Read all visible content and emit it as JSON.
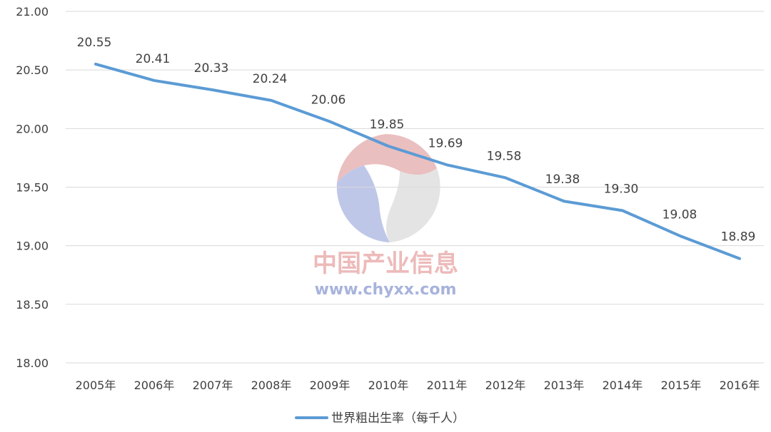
{
  "chart_data": {
    "type": "line",
    "title": "",
    "xlabel": "",
    "ylabel": "",
    "categories": [
      "2005年",
      "2006年",
      "2007年",
      "2008年",
      "2009年",
      "2010年",
      "2011年",
      "2012年",
      "2013年",
      "2014年",
      "2015年",
      "2016年"
    ],
    "series": [
      {
        "name": "世界粗出生率（每千人）",
        "color": "#5b9bd5",
        "values": [
          20.55,
          20.41,
          20.33,
          20.24,
          20.06,
          19.85,
          19.69,
          19.58,
          19.38,
          19.3,
          19.08,
          18.89
        ]
      }
    ],
    "ylim": [
      18.0,
      21.0
    ],
    "yticks": [
      "18.00",
      "18.50",
      "19.00",
      "19.50",
      "20.00",
      "20.50",
      "21.00"
    ],
    "grid": true,
    "legend_position": "bottom-center",
    "data_labels": [
      "20.55",
      "20.41",
      "20.33",
      "20.24",
      "20.06",
      "19.85",
      "19.69",
      "19.58",
      "19.38",
      "19.30",
      "19.08",
      "18.89"
    ]
  },
  "watermark": {
    "name": "中国产业信息",
    "url": "www.chyxx.com"
  }
}
